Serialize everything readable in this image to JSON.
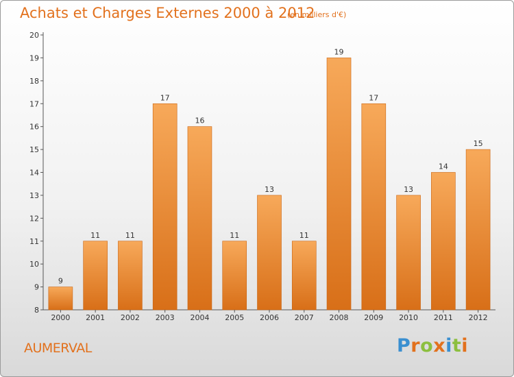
{
  "chart_data": {
    "type": "bar",
    "title": "Achats et Charges Externes 2000 à 2012",
    "subtitle": "(en milliers d'€)",
    "categories": [
      "2000",
      "2001",
      "2002",
      "2003",
      "2004",
      "2005",
      "2006",
      "2007",
      "2008",
      "2009",
      "2010",
      "2011",
      "2012"
    ],
    "values": [
      9,
      11,
      11,
      17,
      16,
      11,
      13,
      11,
      19,
      17,
      13,
      14,
      15
    ],
    "ylim": [
      8,
      20
    ],
    "yticks": [
      8,
      9,
      10,
      11,
      12,
      13,
      14,
      15,
      16,
      17,
      18,
      19,
      20
    ],
    "xlabel": "",
    "ylabel": "",
    "grid": false,
    "colors": {
      "bar_light": "#f7a95a",
      "bar_dark": "#d86f18",
      "bar_edge": "#c96412",
      "title": "#e2711d"
    }
  },
  "footer": {
    "commune": "AUMERVAL",
    "brand_letters": [
      {
        "ch": "P",
        "color": "#3a8fd0"
      },
      {
        "ch": "r",
        "color": "#e2711d"
      },
      {
        "ch": "o",
        "color": "#8cbf3f"
      },
      {
        "ch": "x",
        "color": "#e2711d"
      },
      {
        "ch": "i",
        "color": "#3a8fd0"
      },
      {
        "ch": "t",
        "color": "#8cbf3f"
      },
      {
        "ch": "i",
        "color": "#e2711d"
      }
    ]
  }
}
